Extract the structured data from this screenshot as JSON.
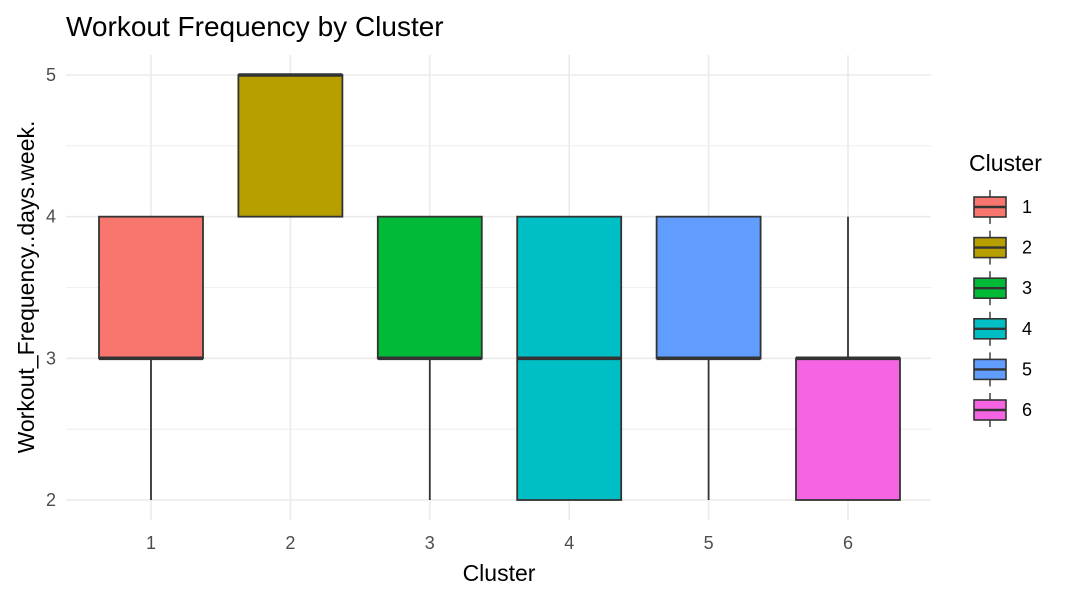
{
  "chart_data": {
    "type": "boxplot",
    "title": "Workout Frequency by Cluster",
    "xlabel": "Cluster",
    "ylabel": "Workout_Frequency..days.week.",
    "categories": [
      "1",
      "2",
      "3",
      "4",
      "5",
      "6"
    ],
    "ylim": [
      2,
      5
    ],
    "yticks": [
      "2",
      "3",
      "4",
      "5"
    ],
    "grid": true,
    "boxes": [
      {
        "min": 2,
        "q1": 3,
        "median": 3,
        "q3": 4,
        "max": 4,
        "color": "#F8766D"
      },
      {
        "min": 4,
        "q1": 4,
        "median": 5,
        "q3": 5,
        "max": 5,
        "color": "#B79F00"
      },
      {
        "min": 2,
        "q1": 3,
        "median": 3,
        "q3": 4,
        "max": 4,
        "color": "#00BA38"
      },
      {
        "min": 2,
        "q1": 2,
        "median": 3,
        "q3": 4,
        "max": 4,
        "color": "#00BFC4"
      },
      {
        "min": 2,
        "q1": 3,
        "median": 3,
        "q3": 4,
        "max": 4,
        "color": "#619CFF"
      },
      {
        "min": 2,
        "q1": 2,
        "median": 3,
        "q3": 3,
        "max": 4,
        "color": "#F564E3"
      }
    ],
    "legend": {
      "title": "Cluster",
      "placement": "right",
      "entries": [
        "1",
        "2",
        "3",
        "4",
        "5",
        "6"
      ]
    }
  }
}
